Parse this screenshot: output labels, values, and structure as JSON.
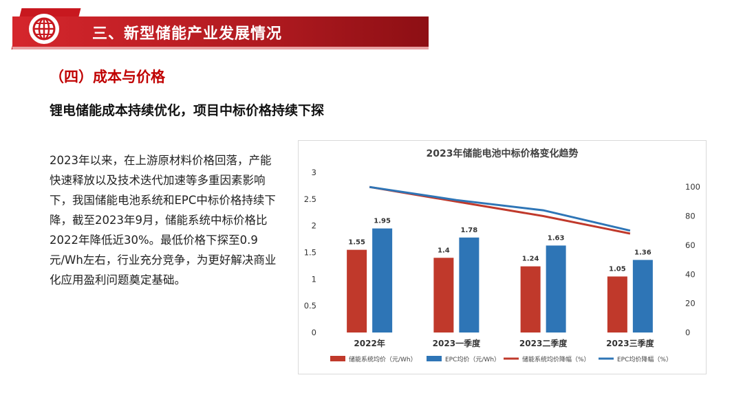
{
  "header": {
    "title": "三、新型储能产业发展情况",
    "logo_icon": "globe-icon",
    "colors": {
      "band": "#c8181f",
      "band_dark": "#8d0f14"
    }
  },
  "section": {
    "title": "（四）成本与价格"
  },
  "subheading": "锂电储能成本持续优化，项目中标价格持续下探",
  "body_text": "2023年以来，在上游原材料价格回落，产能快速释放以及技术迭代加速等多重因素影响下，我国储能电池系统和EPC中标价格持续下降，截至2023年9月，储能系统中标价格比2022年降低近30%。最低价格下探至0.9元/Wh左右，行业充分竞争，为更好解决商业化应用盈利问题奠定基础。",
  "chart_data": {
    "type": "bar",
    "title": "2023年储能电池中标价格变化趋势",
    "categories": [
      "2022年",
      "2023一季度",
      "2023二季度",
      "2023三季度"
    ],
    "y_left": {
      "ylim": [
        0,
        3
      ],
      "ticks": [
        "0",
        "0.5",
        "1",
        "1.5",
        "2",
        "2.5",
        "3"
      ]
    },
    "y_right": {
      "ylim": [
        0,
        110
      ],
      "ticks": [
        "0",
        "20",
        "40",
        "60",
        "80",
        "100"
      ]
    },
    "series": [
      {
        "name": "储能系统均价（元/Wh）",
        "type": "bar",
        "axis": "left",
        "color": "#c0392b",
        "values": [
          1.55,
          1.4,
          1.24,
          1.05
        ],
        "labels": [
          "1.55",
          "1.4",
          "1.24",
          "1.05"
        ]
      },
      {
        "name": "EPC均价（元/Wh）",
        "type": "bar",
        "axis": "left",
        "color": "#2e75b6",
        "values": [
          1.95,
          1.78,
          1.63,
          1.36
        ],
        "labels": [
          "1.95",
          "1.78",
          "1.63",
          "1.36"
        ]
      },
      {
        "name": "储能系统均价降幅（%）",
        "type": "line",
        "axis": "right",
        "color": "#c0392b",
        "values": [
          100,
          90,
          80,
          68
        ]
      },
      {
        "name": "EPC均价降幅（%）",
        "type": "line",
        "axis": "right",
        "color": "#2e75b6",
        "values": [
          100,
          91,
          84,
          70
        ]
      }
    ],
    "legend_position": "bottom"
  }
}
